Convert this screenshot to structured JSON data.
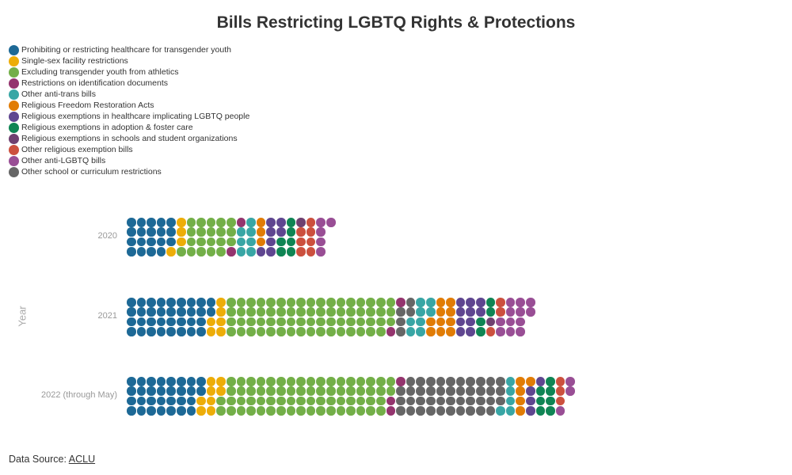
{
  "chart_data": {
    "type": "waffle",
    "title": "Bills Restricting LGBTQ Rights & Protections",
    "ylabel": "Year",
    "legend_position": "top-left",
    "categories": [
      {
        "key": "healthcare",
        "label": "Prohibiting or restricting healthcare for transgender youth",
        "color": "#1d6996"
      },
      {
        "key": "facility",
        "label": "Single-sex facility restrictions",
        "color": "#edad08"
      },
      {
        "key": "athletics",
        "label": "Excluding transgender youth from athletics",
        "color": "#73af48"
      },
      {
        "key": "id",
        "label": "Restrictions on identification documents",
        "color": "#94346e"
      },
      {
        "key": "antitrans",
        "label": "Other anti-trans bills",
        "color": "#38a6a5"
      },
      {
        "key": "rfra",
        "label": "Religious Freedom Restoration Acts",
        "color": "#e17c05"
      },
      {
        "key": "relhealth",
        "label": "Religious exemptions in healthcare implicating LGBTQ people",
        "color": "#5f4690"
      },
      {
        "key": "adoption",
        "label": "Religious exemptions in adoption & foster care",
        "color": "#0f8554"
      },
      {
        "key": "schools",
        "label": "Religious exemptions in schools and student organizations",
        "color": "#6f4070"
      },
      {
        "key": "otherrel",
        "label": "Other religious exemption bills",
        "color": "#cc503e"
      },
      {
        "key": "antilgbtq",
        "label": "Other anti-LGBTQ bills",
        "color": "#994e95"
      },
      {
        "key": "curriculum",
        "label": "Other school or curriculum restrictions",
        "color": "#666666"
      }
    ],
    "fill_order": [
      "healthcare",
      "facility",
      "athletics",
      "id",
      "curriculum",
      "antitrans",
      "rfra",
      "relhealth",
      "adoption",
      "schools",
      "otherrel",
      "antilgbtq"
    ],
    "years": [
      {
        "label": "2020",
        "counts": {
          "healthcare": 19,
          "facility": 4,
          "athletics": 20,
          "id": 2,
          "curriculum": 0,
          "antitrans": 7,
          "rfra": 3,
          "relhealth": 7,
          "adoption": 6,
          "schools": 1,
          "otherrel": 7,
          "antilgbtq": 5
        }
      },
      {
        "label": "2021",
        "counts": {
          "healthcare": 34,
          "facility": 6,
          "athletics": 67,
          "id": 2,
          "curriculum": 5,
          "antitrans": 8,
          "rfra": 10,
          "relhealth": 10,
          "adoption": 4,
          "schools": 1,
          "otherrel": 3,
          "antilgbtq": 12
        }
      },
      {
        "label": "2022 (through May)",
        "counts": {
          "healthcare": 30,
          "facility": 8,
          "athletics": 68,
          "id": 3,
          "curriculum": 42,
          "antitrans": 5,
          "rfra": 5,
          "relhealth": 4,
          "adoption": 7,
          "schools": 0,
          "otherrel": 3,
          "antilgbtq": 3
        }
      }
    ]
  },
  "footer": {
    "source_prefix": "Data Source: ",
    "source_link": "ACLU"
  }
}
